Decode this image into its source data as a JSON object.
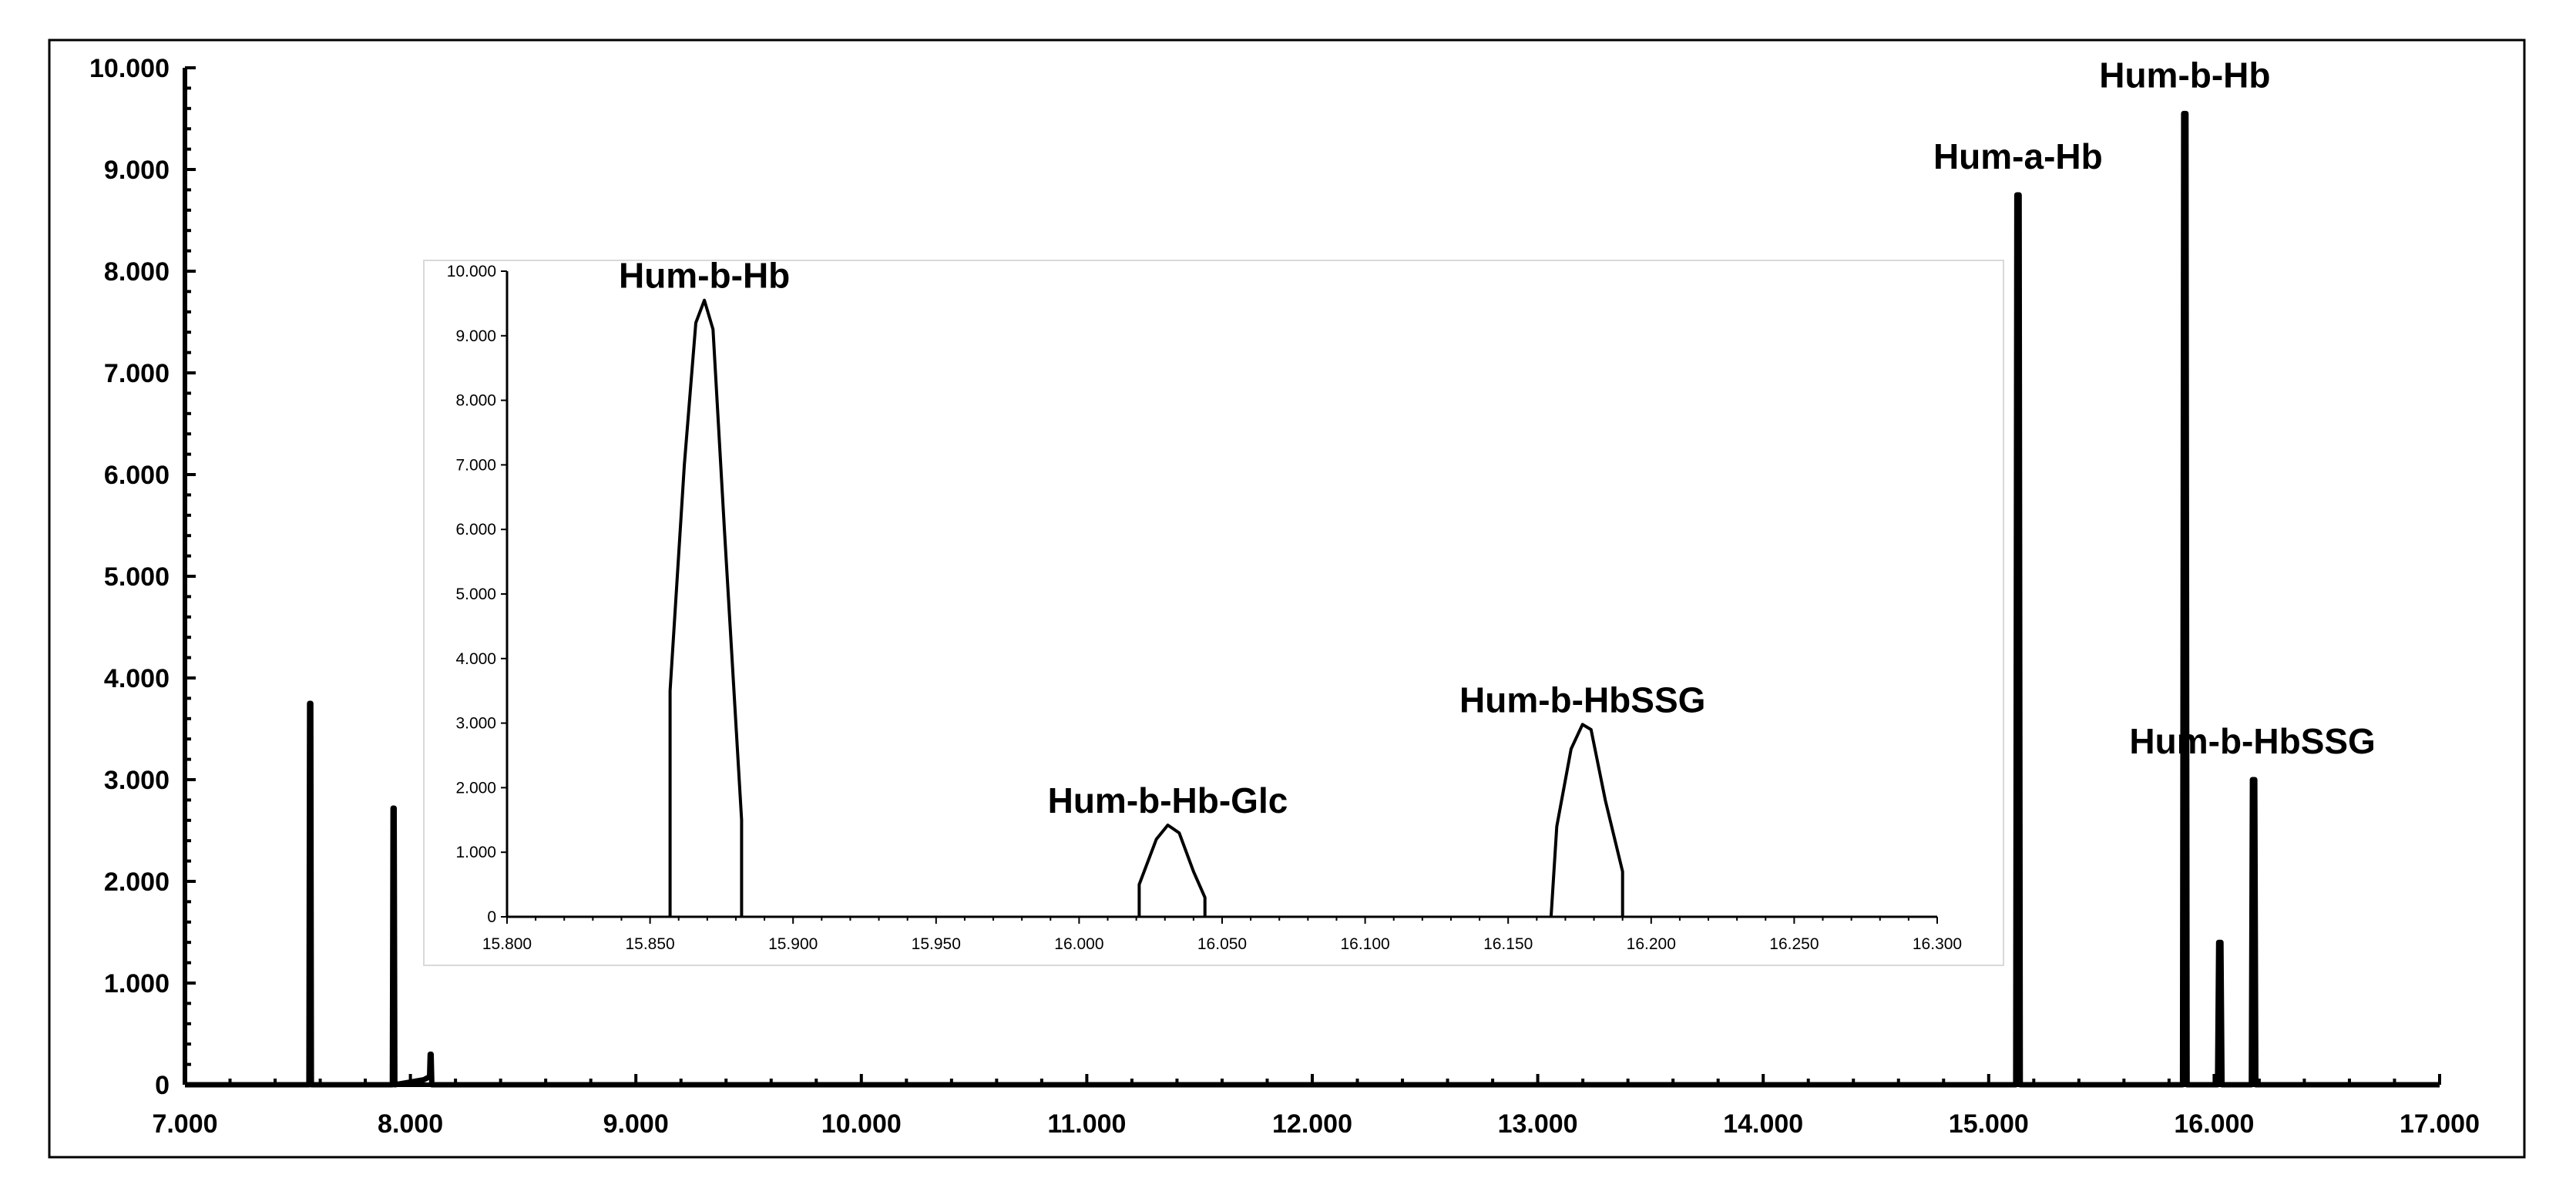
{
  "chart_data": [
    {
      "id": "main",
      "type": "line",
      "title": "",
      "xlabel": "",
      "ylabel": "",
      "xlim": [
        7.0,
        17.0
      ],
      "ylim": [
        0,
        10.0
      ],
      "x_ticks": [
        7.0,
        8.0,
        9.0,
        10.0,
        11.0,
        12.0,
        13.0,
        14.0,
        15.0,
        16.0,
        17.0
      ],
      "x_tick_labels": [
        "7.000",
        "8.000",
        "9.000",
        "10.000",
        "11.000",
        "12.000",
        "13.000",
        "14.000",
        "15.000",
        "16.000",
        "17.000"
      ],
      "y_ticks": [
        0,
        1.0,
        2.0,
        3.0,
        4.0,
        5.0,
        6.0,
        7.0,
        8.0,
        9.0,
        10.0
      ],
      "y_tick_labels": [
        "0",
        "1.000",
        "2.000",
        "3.000",
        "4.000",
        "5.000",
        "6.000",
        "7.000",
        "8.000",
        "9.000",
        "10.000"
      ],
      "grid": false,
      "series": [
        {
          "color": "#000000",
          "points": [
            [
              7.0,
              0
            ],
            [
              7.55,
              0
            ],
            [
              7.553,
              3.75
            ],
            [
              7.558,
              3.75
            ],
            [
              7.561,
              0
            ],
            [
              7.92,
              0
            ],
            [
              7.923,
              2.72
            ],
            [
              7.928,
              2.72
            ],
            [
              7.931,
              0
            ],
            [
              8.06,
              0.05
            ],
            [
              8.085,
              0.08
            ],
            [
              8.088,
              0.3
            ],
            [
              8.092,
              0.3
            ],
            [
              8.095,
              0
            ],
            [
              15.12,
              0
            ],
            [
              15.125,
              8.75
            ],
            [
              15.135,
              8.75
            ],
            [
              15.14,
              0
            ],
            [
              15.86,
              0
            ],
            [
              15.865,
              9.55
            ],
            [
              15.875,
              9.55
            ],
            [
              15.88,
              0
            ],
            [
              16.015,
              0
            ],
            [
              16.02,
              1.4
            ],
            [
              16.03,
              1.4
            ],
            [
              16.035,
              0
            ],
            [
              16.165,
              0
            ],
            [
              16.17,
              3.0
            ],
            [
              16.18,
              3.0
            ],
            [
              16.185,
              0
            ],
            [
              17.0,
              0
            ]
          ]
        }
      ],
      "annotations": [
        {
          "text": "Hum-a-Hb",
          "x": 15.13,
          "y": 8.75
        },
        {
          "text": "Hum-b-Hb",
          "x": 15.87,
          "y": 9.55
        },
        {
          "text": "Hum-b-HbSSG",
          "x": 16.17,
          "y": 3.0
        }
      ]
    },
    {
      "id": "inset",
      "type": "area",
      "title": "",
      "xlabel": "",
      "ylabel": "",
      "xlim": [
        15.8,
        16.3
      ],
      "ylim": [
        0,
        10.0
      ],
      "x_ticks": [
        15.8,
        15.85,
        15.9,
        15.95,
        16.0,
        16.05,
        16.1,
        16.15,
        16.2,
        16.25,
        16.3
      ],
      "x_tick_labels": [
        "15.800",
        "15.850",
        "15.900",
        "15.950",
        "16.000",
        "16.050",
        "16.100",
        "16.150",
        "16.200",
        "16.250",
        "16.300"
      ],
      "y_ticks": [
        0,
        1.0,
        2.0,
        3.0,
        4.0,
        5.0,
        6.0,
        7.0,
        8.0,
        9.0,
        10.0
      ],
      "y_tick_labels": [
        "0",
        "1.000",
        "2.000",
        "3.000",
        "4.000",
        "5.000",
        "6.000",
        "7.000",
        "8.000",
        "9.000",
        "10.000"
      ],
      "grid": false,
      "peaks": [
        {
          "label": "Hum-b-Hb",
          "points": [
            [
              15.857,
              0
            ],
            [
              15.857,
              3.5
            ],
            [
              15.862,
              7.0
            ],
            [
              15.866,
              9.2
            ],
            [
              15.869,
              9.55
            ],
            [
              15.872,
              9.1
            ],
            [
              15.876,
              6.0
            ],
            [
              15.882,
              1.5
            ],
            [
              15.882,
              0
            ]
          ]
        },
        {
          "label": "Hum-b-Hb-Glc",
          "points": [
            [
              16.021,
              0
            ],
            [
              16.021,
              0.5
            ],
            [
              16.027,
              1.2
            ],
            [
              16.031,
              1.42
            ],
            [
              16.035,
              1.3
            ],
            [
              16.04,
              0.7
            ],
            [
              16.044,
              0.3
            ],
            [
              16.044,
              0
            ]
          ]
        },
        {
          "label": "Hum-b-HbSSG",
          "points": [
            [
              16.165,
              0
            ],
            [
              16.167,
              1.4
            ],
            [
              16.172,
              2.6
            ],
            [
              16.176,
              2.98
            ],
            [
              16.179,
              2.9
            ],
            [
              16.184,
              1.8
            ],
            [
              16.19,
              0.7
            ],
            [
              16.19,
              0
            ]
          ]
        }
      ]
    }
  ]
}
